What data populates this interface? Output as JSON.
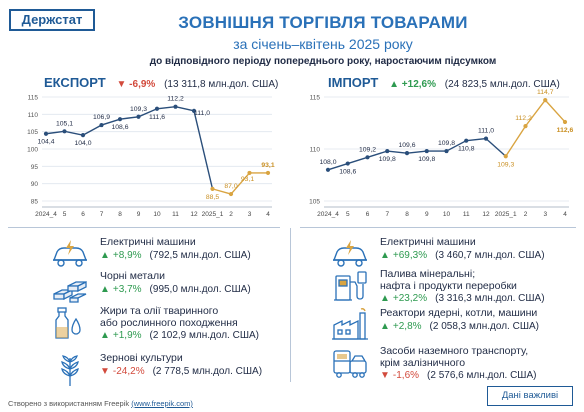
{
  "logo": "Держстат",
  "title": {
    "main": "ЗОВНІШНЯ ТОРГІВЛЯ ТОВАРАМИ",
    "period": "за січень–квітень 2025 року",
    "note": "до відповідного періоду попереднього року, наростаючим підсумком"
  },
  "export": {
    "name": "ЕКСПОРТ",
    "change": "▼ -6,9%",
    "total": "(13 311,8 млн.дол. США)"
  },
  "import": {
    "name": "ІМПОРТ",
    "change": "▲ +12,6%",
    "total": "(24 823,5 млн.дол. США)"
  },
  "chart_data": [
    {
      "type": "line",
      "name": "export",
      "x": [
        "2024_4",
        "5",
        "6",
        "7",
        "8",
        "9",
        "10",
        "11",
        "12",
        "2025_1",
        "2",
        "3",
        "4"
      ],
      "ylim": [
        85,
        115
      ],
      "yticks": [
        85,
        90,
        95,
        100,
        105,
        110,
        115
      ],
      "series": [
        {
          "values": [
            104.4,
            105.1,
            104.0,
            106.9,
            108.6,
            109.3,
            111.6,
            112.2,
            111.0,
            null,
            null,
            null,
            null
          ],
          "labels": [
            "104,4",
            "105,1",
            "104,0",
            "106,9",
            "108,6",
            "109,3",
            "111,6",
            "112,2",
            "111,0",
            "",
            "",
            "",
            ""
          ],
          "color": "#2a4e7a"
        },
        {
          "values": [
            null,
            null,
            null,
            null,
            null,
            null,
            null,
            null,
            null,
            88.5,
            87.0,
            93.1,
            93.1
          ],
          "labels": [
            "",
            "",
            "",
            "",
            "",
            "",
            "",
            "",
            "",
            "88,5",
            "87,0",
            "93,1",
            "93,1"
          ],
          "color": "#d9a441"
        }
      ]
    },
    {
      "type": "line",
      "name": "import",
      "x": [
        "2024_4",
        "5",
        "6",
        "7",
        "8",
        "9",
        "10",
        "11",
        "12",
        "2025_1",
        "2",
        "3",
        "4"
      ],
      "ylim": [
        105,
        115
      ],
      "yticks": [
        105,
        110,
        115
      ],
      "series": [
        {
          "values": [
            108.0,
            108.6,
            109.2,
            109.8,
            109.6,
            109.8,
            109.8,
            110.8,
            111.0,
            null,
            null,
            null,
            null
          ],
          "labels": [
            "108,0",
            "108,6",
            "109,2",
            "109,8",
            "109,6",
            "109,8",
            "109,8",
            "110,8",
            "111,0",
            "",
            "",
            "",
            ""
          ],
          "color": "#2a4e7a"
        },
        {
          "values": [
            null,
            null,
            null,
            null,
            null,
            null,
            null,
            null,
            null,
            109.3,
            112.2,
            114.7,
            112.6
          ],
          "labels": [
            "",
            "",
            "",
            "",
            "",
            "",
            "",
            "",
            "",
            "109,3",
            "112,2",
            "114,7",
            "112,6"
          ],
          "color": "#d9a441"
        }
      ]
    }
  ],
  "export_items": [
    {
      "icon": "electric-car-icon",
      "label": "Електричні машини",
      "label2": "",
      "arrow": "▲",
      "pct": "+8,9%",
      "amount": "(792,5 млн.дол. США)",
      "dir": "up"
    },
    {
      "icon": "metal-bars-icon",
      "label": "Чорні метали",
      "label2": "",
      "arrow": "▲",
      "pct": "+3,7%",
      "amount": "(995,0 млн.дол. США)",
      "dir": "up"
    },
    {
      "icon": "oil-bottle-icon",
      "label": "Жири та олії тваринного",
      "label2": "або рослинного походження",
      "arrow": "▲",
      "pct": "+1,9%",
      "amount": "(2 102,9 млн.дол. США)",
      "dir": "up"
    },
    {
      "icon": "wheat-icon",
      "label": "Зернові культури",
      "label2": "",
      "arrow": "▼",
      "pct": "-24,2%",
      "amount": "(2 778,5 млн.дол. США)",
      "dir": "down"
    }
  ],
  "import_items": [
    {
      "icon": "electric-car-icon",
      "label": "Електричні машини",
      "label2": "",
      "arrow": "▲",
      "pct": "+69,3%",
      "amount": "(3 460,7 млн.дол. США)",
      "dir": "up"
    },
    {
      "icon": "fuel-pump-icon",
      "label": "Палива мінеральні;",
      "label2": "нафта і продукти переробки",
      "arrow": "▲",
      "pct": "+23,2%",
      "amount": "(3 316,3 млн.дол. США)",
      "dir": "up"
    },
    {
      "icon": "factory-icon",
      "label": "Реактори ядерні, котли, машини",
      "label2": "",
      "arrow": "▲",
      "pct": "+2,8%",
      "amount": "(2 058,3 млн.дол. США)",
      "dir": "up"
    },
    {
      "icon": "vehicles-icon",
      "label": "Засоби наземного транспорту,",
      "label2": "крім залізничного",
      "arrow": "▼",
      "pct": "-1,6%",
      "amount": "(2 576,6 млн.дол. США)",
      "dir": "down"
    }
  ],
  "footer": {
    "text": "Створено з використанням Freepik ",
    "link": "(www.freepik.com)"
  },
  "badge": "Дані важливі",
  "colors": {
    "blue": "#2a4e7a",
    "gold": "#d9a441",
    "up": "#2e9a50",
    "down": "#d24a3c",
    "accent": "#2a71b8"
  }
}
